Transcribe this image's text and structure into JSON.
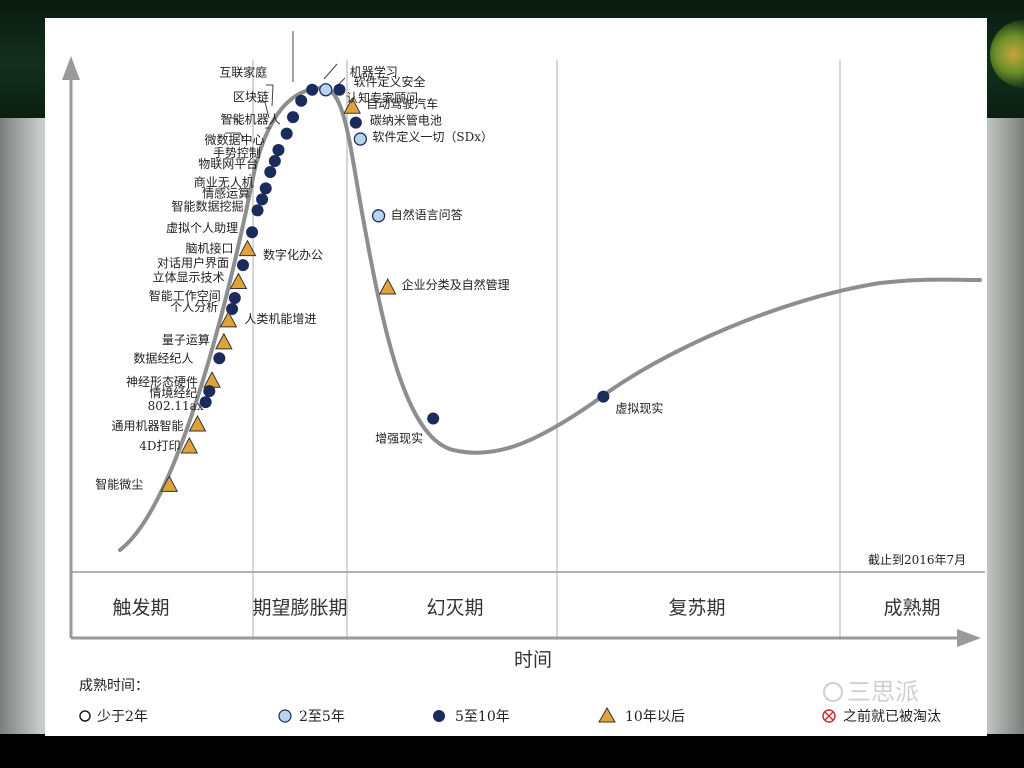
{
  "legend": {
    "title": "成熟时间：",
    "items": [
      {
        "key": "lt2",
        "marker": "circle-open",
        "label": "少于2年"
      },
      {
        "key": "y2to5",
        "marker": "circle-light",
        "label": "2至5年"
      },
      {
        "key": "y5to10",
        "marker": "circle-dark",
        "label": "5至10年"
      },
      {
        "key": "gt10",
        "marker": "triangle",
        "label": "10年以后"
      },
      {
        "key": "obsolete",
        "marker": "circle-x",
        "label": "之前就已被淘汰"
      }
    ]
  },
  "watermark": "三思派",
  "colors": {
    "dark": "#1b2b5c",
    "light": "#b9d3ec",
    "triangle": "#e0a23a",
    "curve": "#8e8e8e",
    "obsolete": "#cc3333"
  },
  "chart_data": {
    "type": "scatter",
    "title": "",
    "xlabel": "时间",
    "ylabel": "",
    "date_note": "截止到2016年7月",
    "phases": [
      "触发期",
      "期望膨胀期",
      "幻灭期",
      "复苏期",
      "成熟期"
    ],
    "unplaced_labels": [
      {
        "label": "数字化办公"
      }
    ],
    "points": [
      {
        "label": "认知专家顾问",
        "cat": "y5to10",
        "x": 0.265,
        "y": 0.88
      },
      {
        "label": "机器学习",
        "cat": "y2to5",
        "x": 0.28,
        "y": 0.88
      },
      {
        "label": "软件定义安全",
        "cat": "y5to10",
        "x": 0.295,
        "y": 0.88
      },
      {
        "label": "互联家庭",
        "cat": "y5to10",
        "x": 0.253,
        "y": 0.86
      },
      {
        "label": "区块链",
        "cat": "y5to10",
        "x": 0.244,
        "y": 0.83
      },
      {
        "label": "智能机器人",
        "cat": "y5to10",
        "x": 0.237,
        "y": 0.8
      },
      {
        "label": "微数据中心",
        "cat": "y5to10",
        "x": 0.228,
        "y": 0.77
      },
      {
        "label": "手势控制",
        "cat": "y5to10",
        "x": 0.224,
        "y": 0.75
      },
      {
        "label": "物联网平台",
        "cat": "y5to10",
        "x": 0.219,
        "y": 0.73
      },
      {
        "label": "商业无人机",
        "cat": "y5to10",
        "x": 0.214,
        "y": 0.7
      },
      {
        "label": "情感运算",
        "cat": "y5to10",
        "x": 0.21,
        "y": 0.68
      },
      {
        "label": "智能数据挖掘",
        "cat": "y5to10",
        "x": 0.205,
        "y": 0.66
      },
      {
        "label": "虚拟个人助理",
        "cat": "y5to10",
        "x": 0.199,
        "y": 0.62
      },
      {
        "label": "脑机接口",
        "cat": "gt10",
        "x": 0.194,
        "y": 0.59
      },
      {
        "label": "对话用户界面",
        "cat": "y5to10",
        "x": 0.189,
        "y": 0.56
      },
      {
        "label": "立体显示技术",
        "cat": "gt10",
        "x": 0.184,
        "y": 0.53
      },
      {
        "label": "智能工作空间",
        "cat": "y5to10",
        "x": 0.18,
        "y": 0.5
      },
      {
        "label": "个人分析",
        "cat": "y5to10",
        "x": 0.177,
        "y": 0.48
      },
      {
        "label": "人类机能增进",
        "cat": "gt10",
        "x": 0.173,
        "y": 0.46
      },
      {
        "label": "量子运算",
        "cat": "gt10",
        "x": 0.168,
        "y": 0.42
      },
      {
        "label": "数据经纪人",
        "cat": "y5to10",
        "x": 0.163,
        "y": 0.39
      },
      {
        "label": "神经形态硬件",
        "cat": "gt10",
        "x": 0.155,
        "y": 0.35
      },
      {
        "label": "情境经纪",
        "cat": "y5to10",
        "x": 0.152,
        "y": 0.33
      },
      {
        "label": "802.11ax",
        "cat": "y5to10",
        "x": 0.148,
        "y": 0.31
      },
      {
        "label": "通用机器智能",
        "cat": "gt10",
        "x": 0.139,
        "y": 0.27
      },
      {
        "label": "4D打印",
        "cat": "gt10",
        "x": 0.13,
        "y": 0.23
      },
      {
        "label": "智能微尘",
        "cat": "gt10",
        "x": 0.108,
        "y": 0.16
      },
      {
        "label": "自动驾驶汽车",
        "cat": "gt10",
        "x": 0.309,
        "y": 0.85
      },
      {
        "label": "碳纳米管电池",
        "cat": "y5to10",
        "x": 0.313,
        "y": 0.82
      },
      {
        "label": "软件定义一切（SDx）",
        "cat": "y2to5",
        "x": 0.318,
        "y": 0.79
      },
      {
        "label": "自然语言问答",
        "cat": "y2to5",
        "x": 0.338,
        "y": 0.65
      },
      {
        "label": "企业分类及自然管理",
        "cat": "gt10",
        "x": 0.348,
        "y": 0.52
      },
      {
        "label": "增强现实",
        "cat": "y5to10",
        "x": 0.398,
        "y": 0.28
      },
      {
        "label": "虚拟现实",
        "cat": "y5to10",
        "x": 0.585,
        "y": 0.32
      }
    ]
  }
}
